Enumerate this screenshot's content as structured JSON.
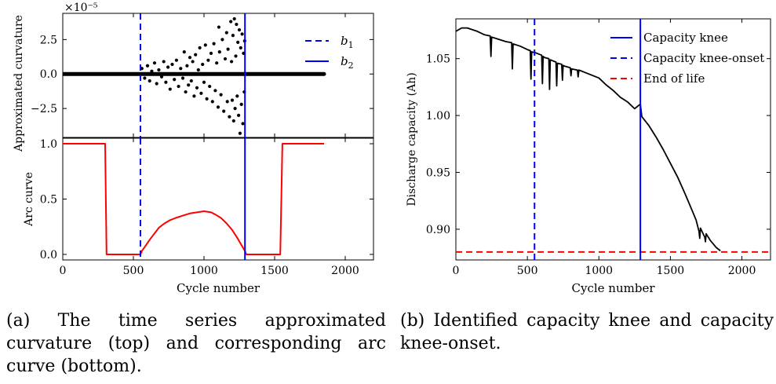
{
  "chart_data": [
    {
      "type": "scatter",
      "panel": "top-left",
      "ylabel": "Approximated curvature",
      "xlabel": "",
      "y_offset_text": "×10⁻⁵",
      "xlim": [
        0,
        2200
      ],
      "ylim": [
        -4.6,
        4.4
      ],
      "yticks": [
        2.5,
        0.0,
        -2.5
      ],
      "ytick_labels": [
        "2.5",
        "0.0",
        "−2.5"
      ],
      "xticks": [
        0,
        500,
        1000,
        1500,
        2000
      ],
      "legend": {
        "placement": "top-right",
        "entries": [
          {
            "label": "b",
            "sub": "1",
            "style": "dashed",
            "color": "#0000ff"
          },
          {
            "label": "b",
            "sub": "2",
            "style": "solid",
            "color": "#0000ff"
          }
        ]
      },
      "vlines": [
        {
          "x": 550,
          "style": "dashed",
          "color": "#0000ff"
        },
        {
          "x": 1290,
          "style": "solid",
          "color": "#0000ff"
        }
      ],
      "baseline": {
        "x_start": 0,
        "x_end": 1850,
        "y": 0.0
      },
      "points": [
        [
          560,
          0.4
        ],
        [
          580,
          -0.3
        ],
        [
          600,
          0.6
        ],
        [
          615,
          -0.5
        ],
        [
          630,
          0.2
        ],
        [
          650,
          0.8
        ],
        [
          665,
          -0.7
        ],
        [
          680,
          0.3
        ],
        [
          700,
          -0.2
        ],
        [
          715,
          0.9
        ],
        [
          730,
          -0.6
        ],
        [
          745,
          0.5
        ],
        [
          760,
          -1.1
        ],
        [
          775,
          0.7
        ],
        [
          790,
          -0.4
        ],
        [
          805,
          1.0
        ],
        [
          820,
          -0.9
        ],
        [
          835,
          0.4
        ],
        [
          850,
          -0.3
        ],
        [
          860,
          1.6
        ],
        [
          870,
          -1.3
        ],
        [
          880,
          0.6
        ],
        [
          890,
          -0.8
        ],
        [
          900,
          1.2
        ],
        [
          910,
          -0.5
        ],
        [
          920,
          0.9
        ],
        [
          930,
          -1.6
        ],
        [
          940,
          1.4
        ],
        [
          950,
          -1.0
        ],
        [
          960,
          0.3
        ],
        [
          970,
          1.9
        ],
        [
          980,
          -1.4
        ],
        [
          990,
          0.7
        ],
        [
          1000,
          -0.6
        ],
        [
          1010,
          2.1
        ],
        [
          1020,
          -1.8
        ],
        [
          1030,
          1.0
        ],
        [
          1040,
          -0.9
        ],
        [
          1050,
          1.5
        ],
        [
          1060,
          -2.0
        ],
        [
          1070,
          2.2
        ],
        [
          1080,
          -1.2
        ],
        [
          1090,
          0.8
        ],
        [
          1100,
          -2.4
        ],
        [
          1105,
          3.4
        ],
        [
          1110,
          1.6
        ],
        [
          1120,
          -1.5
        ],
        [
          1130,
          2.5
        ],
        [
          1140,
          -2.7
        ],
        [
          1150,
          1.1
        ],
        [
          1160,
          3.0
        ],
        [
          1165,
          -2.0
        ],
        [
          1170,
          1.8
        ],
        [
          1180,
          -3.1
        ],
        [
          1190,
          3.8
        ],
        [
          1195,
          0.9
        ],
        [
          1200,
          -1.9
        ],
        [
          1205,
          2.8
        ],
        [
          1210,
          -3.4
        ],
        [
          1215,
          4.0
        ],
        [
          1220,
          -2.5
        ],
        [
          1225,
          1.3
        ],
        [
          1230,
          3.6
        ],
        [
          1235,
          -1.6
        ],
        [
          1240,
          2.3
        ],
        [
          1245,
          -3.0
        ],
        [
          1250,
          3.2
        ],
        [
          1255,
          -4.3
        ],
        [
          1260,
          1.9
        ],
        [
          1265,
          -2.2
        ],
        [
          1270,
          2.9
        ],
        [
          1275,
          -3.6
        ],
        [
          1280,
          1.5
        ],
        [
          1285,
          -1.3
        ],
        [
          1288,
          2.4
        ]
      ]
    },
    {
      "type": "line",
      "panel": "bottom-left",
      "ylabel": "Arc curve",
      "xlabel": "Cycle number",
      "xlim": [
        0,
        2200
      ],
      "ylim": [
        -0.05,
        1.05
      ],
      "yticks": [
        0.0,
        0.5,
        1.0
      ],
      "ytick_labels": [
        "0.0",
        "0.5",
        "1.0"
      ],
      "xticks": [
        0,
        500,
        1000,
        1500,
        2000
      ],
      "xtick_labels": [
        "0",
        "500",
        "1000",
        "1500",
        "2000"
      ],
      "vlines": [
        {
          "x": 550,
          "style": "dashed",
          "color": "#0000ff"
        },
        {
          "x": 1290,
          "style": "solid",
          "color": "#0000ff"
        }
      ],
      "series": [
        {
          "color": "#ff0000",
          "x": [
            0,
            300,
            310,
            550,
            560,
            620,
            680,
            720,
            760,
            800,
            850,
            900,
            950,
            1000,
            1050,
            1080,
            1120,
            1160,
            1200,
            1240,
            1290,
            1300,
            1540,
            1555,
            1850
          ],
          "y": [
            1.0,
            1.0,
            0.0,
            0.0,
            0.03,
            0.14,
            0.24,
            0.28,
            0.31,
            0.33,
            0.35,
            0.37,
            0.38,
            0.39,
            0.38,
            0.36,
            0.33,
            0.28,
            0.22,
            0.14,
            0.03,
            0.0,
            0.0,
            1.0,
            1.0
          ]
        }
      ]
    },
    {
      "type": "line",
      "panel": "right",
      "ylabel": "Discharge capacity (Ah)",
      "xlabel": "Cycle number",
      "xlim": [
        0,
        2200
      ],
      "ylim": [
        0.873,
        1.085
      ],
      "yticks": [
        0.9,
        0.95,
        1.0,
        1.05
      ],
      "ytick_labels": [
        "0.90",
        "0.95",
        "1.00",
        "1.05"
      ],
      "xticks": [
        0,
        500,
        1000,
        1500,
        2000
      ],
      "xtick_labels": [
        "0",
        "500",
        "1000",
        "1500",
        "2000"
      ],
      "legend": {
        "placement": "top-right",
        "entries": [
          {
            "label": "Capacity knee",
            "style": "solid",
            "color": "#0000ff"
          },
          {
            "label": "Capacity knee-onset",
            "style": "dashed",
            "color": "#0000ff"
          },
          {
            "label": "End of life",
            "style": "dashed",
            "color": "#ff0000"
          }
        ]
      },
      "vlines": [
        {
          "x": 550,
          "style": "dashed",
          "color": "#0000ff",
          "name": "Capacity knee-onset"
        },
        {
          "x": 1290,
          "style": "solid",
          "color": "#0000ff",
          "name": "Capacity knee"
        }
      ],
      "hlines": [
        {
          "y": 0.88,
          "style": "dashed",
          "color": "#ff0000",
          "name": "End of life"
        }
      ],
      "series": [
        {
          "color": "#000000",
          "x": [
            0,
            40,
            80,
            150,
            200,
            240,
            245,
            250,
            300,
            350,
            390,
            395,
            400,
            450,
            500,
            520,
            525,
            530,
            560,
            600,
            605,
            610,
            620,
            650,
            655,
            660,
            680,
            700,
            705,
            710,
            740,
            745,
            750,
            770,
            800,
            805,
            810,
            850,
            855,
            860,
            880,
            900,
            1000,
            1050,
            1100,
            1150,
            1200,
            1250,
            1290,
            1300,
            1350,
            1400,
            1450,
            1500,
            1550,
            1600,
            1650,
            1680,
            1700,
            1705,
            1710,
            1740,
            1745,
            1750,
            1780,
            1800,
            1820,
            1840,
            1850
          ],
          "y": [
            1.074,
            1.077,
            1.077,
            1.074,
            1.071,
            1.07,
            1.052,
            1.069,
            1.067,
            1.065,
            1.064,
            1.041,
            1.063,
            1.061,
            1.058,
            1.057,
            1.032,
            1.056,
            1.055,
            1.053,
            1.028,
            1.052,
            1.051,
            1.05,
            1.023,
            1.049,
            1.048,
            1.047,
            1.026,
            1.046,
            1.045,
            1.031,
            1.044,
            1.043,
            1.042,
            1.035,
            1.041,
            1.04,
            1.034,
            1.04,
            1.039,
            1.038,
            1.033,
            1.027,
            1.022,
            1.016,
            1.012,
            1.006,
            1.01,
            0.999,
            0.991,
            0.981,
            0.97,
            0.958,
            0.946,
            0.932,
            0.917,
            0.908,
            0.898,
            0.892,
            0.901,
            0.893,
            0.889,
            0.896,
            0.89,
            0.887,
            0.884,
            0.882,
            0.881
          ]
        }
      ]
    }
  ],
  "captions": {
    "a": "(a) The time series approximated curvature (top) and corresponding arc curve (bottom).",
    "b": "(b) Identified capacity knee and capacity knee-onset."
  }
}
